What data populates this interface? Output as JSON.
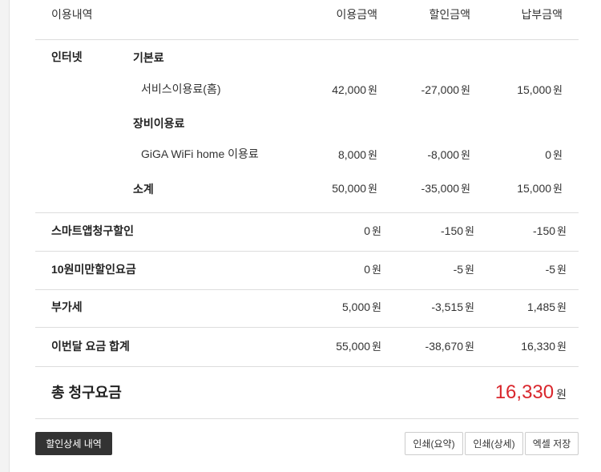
{
  "header": {
    "col_item": "이용내역",
    "col_usage": "이용금액",
    "col_discount": "할인금액",
    "col_payment": "납부금액"
  },
  "internet": {
    "label": "인터넷",
    "basic_label": "기본료",
    "service": {
      "label": "서비스이용료(홈)",
      "usage": "42,000",
      "discount": "-27,000",
      "payment": "15,000"
    },
    "equipment_label": "장비이용료",
    "wifi": {
      "label": "GiGA WiFi home 이용료",
      "usage": "8,000",
      "discount": "-8,000",
      "payment": "0"
    },
    "subtotal": {
      "label": "소계",
      "usage": "50,000",
      "discount": "-35,000",
      "payment": "15,000"
    }
  },
  "rows": [
    {
      "label": "스마트앱청구할인",
      "usage": "0",
      "discount": "-150",
      "payment": "-150"
    },
    {
      "label": "10원미만할인요금",
      "usage": "0",
      "discount": "-5",
      "payment": "-5"
    },
    {
      "label": "부가세",
      "usage": "5,000",
      "discount": "-3,515",
      "payment": "1,485"
    },
    {
      "label": "이번달 요금 합계",
      "usage": "55,000",
      "discount": "-38,670",
      "payment": "16,330"
    }
  ],
  "unit": "원",
  "total": {
    "label": "총 청구요금",
    "value": "16,330",
    "color": "#d9262c"
  },
  "buttons": {
    "discount_detail": "할인상세 내역",
    "print_summary": "인쇄(요약)",
    "print_detail": "인쇄(상세)",
    "excel_save": "엑셀 저장"
  }
}
